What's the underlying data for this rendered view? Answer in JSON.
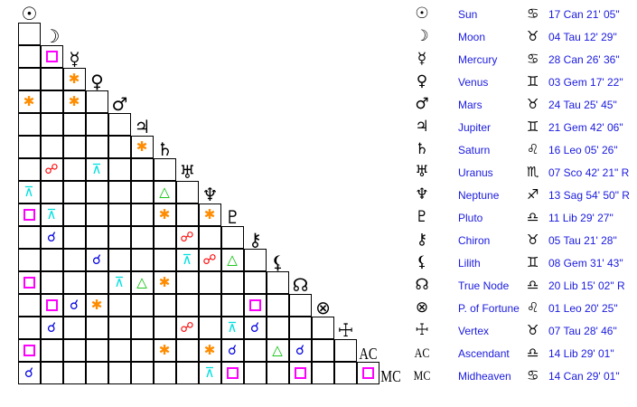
{
  "colors": {
    "square": "#ff00ff",
    "sextile": "#ff8c00",
    "trine": "#00c000",
    "opposition": "#ff0000",
    "conjunction": "#0000e0",
    "quincunx": "#00e0e0",
    "text": "#1a1adf"
  },
  "aspect_symbols": {
    "square": "",
    "sextile": "✱",
    "trine": "△",
    "opposition": "☍",
    "conjunction": "☌",
    "quincunx": "⊼"
  },
  "bodies": [
    {
      "glyph": "☉",
      "name": "Sun",
      "sign": "♋",
      "position": "17 Can 21' 05\""
    },
    {
      "glyph": "☽",
      "name": "Moon",
      "sign": "♉",
      "position": "04 Tau 12' 29\""
    },
    {
      "glyph": "☿",
      "name": "Mercury",
      "sign": "♋",
      "position": "28 Can 26' 36\""
    },
    {
      "glyph": "♀",
      "name": "Venus",
      "sign": "♊",
      "position": "03 Gem 17' 22\""
    },
    {
      "glyph": "♂",
      "name": "Mars",
      "sign": "♉",
      "position": "24 Tau 25' 45\""
    },
    {
      "glyph": "♃",
      "name": "Jupiter",
      "sign": "♊",
      "position": "21 Gem 42' 06\""
    },
    {
      "glyph": "♄",
      "name": "Saturn",
      "sign": "♌",
      "position": "16 Leo 05' 26\""
    },
    {
      "glyph": "♅",
      "name": "Uranus",
      "sign": "♏",
      "position": "07 Sco 42' 21\" R"
    },
    {
      "glyph": "♆",
      "name": "Neptune",
      "sign": "♐",
      "position": "13 Sag 54' 50\" R"
    },
    {
      "glyph": "♇",
      "name": "Pluto",
      "sign": "♎",
      "position": "11 Lib 29' 27\""
    },
    {
      "glyph": "⚷",
      "name": "Chiron",
      "sign": "♉",
      "position": "05 Tau 21' 28\""
    },
    {
      "glyph": "⚸",
      "name": "Lilith",
      "sign": "♊",
      "position": "08 Gem 31' 43\""
    },
    {
      "glyph": "☊",
      "name": "True Node",
      "sign": "♎",
      "position": "20 Lib 15' 02\" R"
    },
    {
      "glyph": "⊗",
      "name": "P. of Fortune",
      "sign": "♌",
      "position": "01 Leo 20' 25\""
    },
    {
      "glyph": "☩",
      "name": "Vertex",
      "sign": "♉",
      "position": "07 Tau 28' 46\""
    },
    {
      "glyph": "AC",
      "name": "Ascendant",
      "sign": "♎",
      "position": "14 Lib 29' 01\""
    },
    {
      "glyph": "MC",
      "name": "Midheaven",
      "sign": "♋",
      "position": "14 Can 29' 01\""
    }
  ],
  "aspects": [
    {
      "row": "Mercury",
      "col": "Moon",
      "type": "square"
    },
    {
      "row": "Venus",
      "col": "Mercury",
      "type": "sextile"
    },
    {
      "row": "Mars",
      "col": "Sun",
      "type": "sextile"
    },
    {
      "row": "Mars",
      "col": "Mercury",
      "type": "sextile"
    },
    {
      "row": "Saturn",
      "col": "Jupiter",
      "type": "sextile"
    },
    {
      "row": "Uranus",
      "col": "Moon",
      "type": "opposition"
    },
    {
      "row": "Uranus",
      "col": "Venus",
      "type": "quincunx"
    },
    {
      "row": "Neptune",
      "col": "Sun",
      "type": "quincunx"
    },
    {
      "row": "Neptune",
      "col": "Saturn",
      "type": "trine"
    },
    {
      "row": "Pluto",
      "col": "Sun",
      "type": "square"
    },
    {
      "row": "Pluto",
      "col": "Moon",
      "type": "quincunx"
    },
    {
      "row": "Pluto",
      "col": "Saturn",
      "type": "sextile"
    },
    {
      "row": "Pluto",
      "col": "Neptune",
      "type": "sextile"
    },
    {
      "row": "Chiron",
      "col": "Moon",
      "type": "conjunction"
    },
    {
      "row": "Chiron",
      "col": "Uranus",
      "type": "opposition"
    },
    {
      "row": "Lilith",
      "col": "Venus",
      "type": "conjunction"
    },
    {
      "row": "Lilith",
      "col": "Uranus",
      "type": "quincunx"
    },
    {
      "row": "Lilith",
      "col": "Neptune",
      "type": "opposition"
    },
    {
      "row": "Lilith",
      "col": "Pluto",
      "type": "trine"
    },
    {
      "row": "True Node",
      "col": "Sun",
      "type": "square"
    },
    {
      "row": "True Node",
      "col": "Mars",
      "type": "quincunx"
    },
    {
      "row": "True Node",
      "col": "Jupiter",
      "type": "trine"
    },
    {
      "row": "True Node",
      "col": "Saturn",
      "type": "sextile"
    },
    {
      "row": "P. of Fortune",
      "col": "Moon",
      "type": "square"
    },
    {
      "row": "P. of Fortune",
      "col": "Mercury",
      "type": "conjunction"
    },
    {
      "row": "P. of Fortune",
      "col": "Venus",
      "type": "sextile"
    },
    {
      "row": "P. of Fortune",
      "col": "Chiron",
      "type": "square"
    },
    {
      "row": "Vertex",
      "col": "Moon",
      "type": "conjunction"
    },
    {
      "row": "Vertex",
      "col": "Uranus",
      "type": "opposition"
    },
    {
      "row": "Vertex",
      "col": "Pluto",
      "type": "quincunx"
    },
    {
      "row": "Vertex",
      "col": "Chiron",
      "type": "conjunction"
    },
    {
      "row": "Ascendant",
      "col": "Sun",
      "type": "square"
    },
    {
      "row": "Ascendant",
      "col": "Saturn",
      "type": "sextile"
    },
    {
      "row": "Ascendant",
      "col": "Neptune",
      "type": "sextile"
    },
    {
      "row": "Ascendant",
      "col": "Pluto",
      "type": "conjunction"
    },
    {
      "row": "Ascendant",
      "col": "Lilith",
      "type": "trine"
    },
    {
      "row": "Ascendant",
      "col": "True Node",
      "type": "conjunction"
    },
    {
      "row": "Midheaven",
      "col": "Sun",
      "type": "conjunction"
    },
    {
      "row": "Midheaven",
      "col": "Neptune",
      "type": "quincunx"
    },
    {
      "row": "Midheaven",
      "col": "Pluto",
      "type": "square"
    },
    {
      "row": "Midheaven",
      "col": "True Node",
      "type": "square"
    },
    {
      "row": "Midheaven",
      "col": "Ascendant",
      "type": "square"
    }
  ]
}
